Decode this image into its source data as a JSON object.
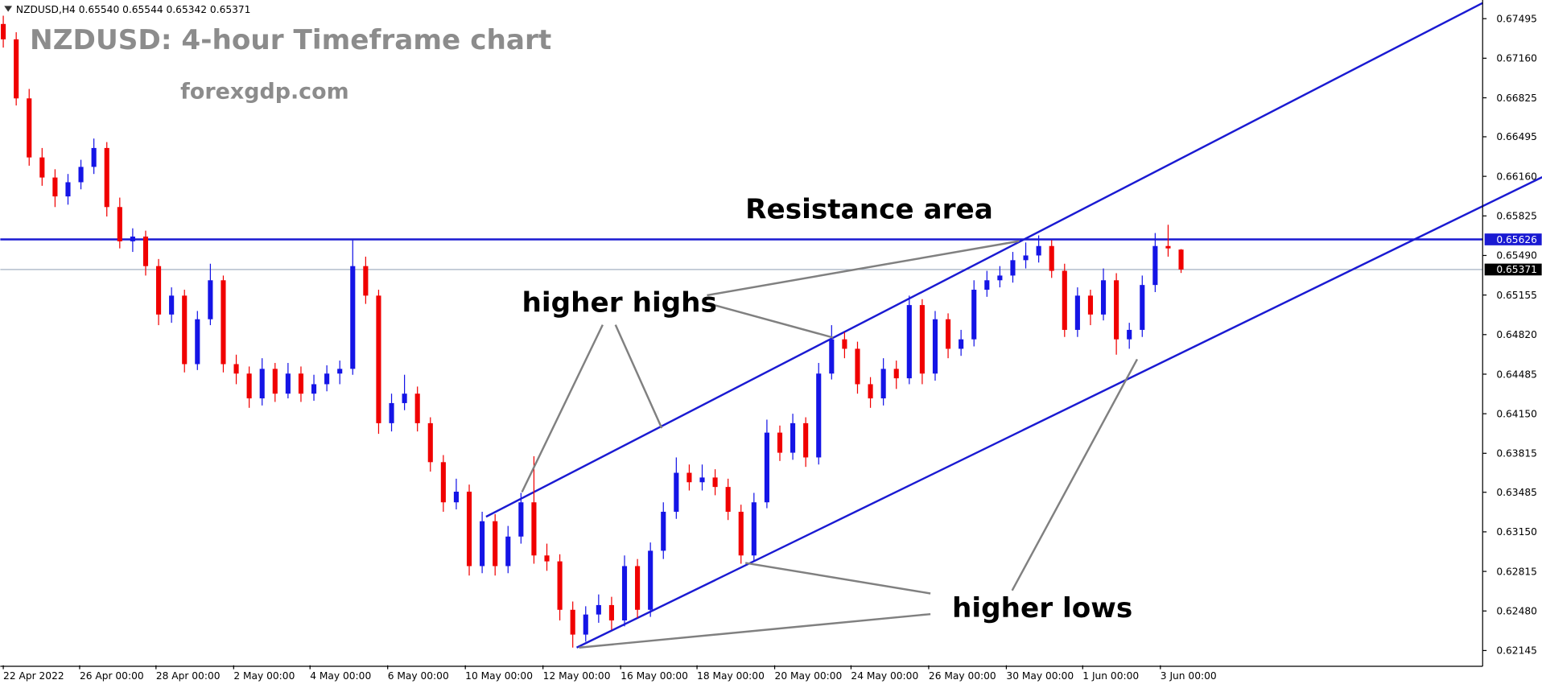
{
  "chart_data": {
    "type": "candlestick",
    "header": "NZDUSD,H4  0.65540 0.65544 0.65342 0.65371",
    "title": "NZDUSD: 4-hour Timeframe chart",
    "subtitle": "forexgdp.com",
    "annotations": [
      "Resistance area",
      "higher highs",
      "higher lows"
    ],
    "up_color": "#1414e6",
    "down_color": "#f00000",
    "open": [
      0.6745,
      0.6732,
      0.6682,
      0.6632,
      0.6615,
      0.6599,
      0.6611,
      0.6624,
      0.664,
      0.659,
      0.6561,
      0.6565,
      0.654,
      0.6499,
      0.6515,
      0.6457,
      0.6495,
      0.6528,
      0.6457,
      0.6449,
      0.6428,
      0.6453,
      0.6432,
      0.6449,
      0.6432,
      0.644,
      0.6449,
      0.6453,
      0.654,
      0.6515,
      0.6407,
      0.6424,
      0.6432,
      0.6407,
      0.6374,
      0.634,
      0.6349,
      0.6286,
      0.6324,
      0.6286,
      0.6311,
      0.634,
      0.6295,
      0.629,
      0.6249,
      0.6228,
      0.6245,
      0.6253,
      0.624,
      0.6286,
      0.6249,
      0.6299,
      0.6332,
      0.6365,
      0.6357,
      0.6361,
      0.6353,
      0.6332,
      0.6295,
      0.634,
      0.6399,
      0.6382,
      0.6407,
      0.6378,
      0.6449,
      0.6478,
      0.647,
      0.644,
      0.6428,
      0.6453,
      0.6445,
      0.6507,
      0.6449,
      0.6495,
      0.647,
      0.6478,
      0.652,
      0.6528,
      0.6532,
      0.6545,
      0.6549,
      0.6557,
      0.6536,
      0.6486,
      0.6515,
      0.6499,
      0.6528,
      0.6478,
      0.6486,
      0.6524,
      0.6557,
      0.6554
    ],
    "high": [
      0.6752,
      0.6738,
      0.669,
      0.664,
      0.6622,
      0.6618,
      0.663,
      0.6648,
      0.6645,
      0.6598,
      0.6572,
      0.657,
      0.6546,
      0.6522,
      0.652,
      0.6502,
      0.6542,
      0.6532,
      0.6465,
      0.6455,
      0.6462,
      0.6458,
      0.6458,
      0.6455,
      0.6448,
      0.6456,
      0.646,
      0.6562,
      0.6548,
      0.652,
      0.6432,
      0.6448,
      0.6438,
      0.6412,
      0.638,
      0.636,
      0.6355,
      0.6332,
      0.633,
      0.632,
      0.6348,
      0.6379,
      0.6305,
      0.6296,
      0.6256,
      0.6252,
      0.6262,
      0.626,
      0.6295,
      0.6292,
      0.6306,
      0.634,
      0.6378,
      0.6372,
      0.6372,
      0.6368,
      0.636,
      0.6338,
      0.6348,
      0.641,
      0.6405,
      0.6415,
      0.6412,
      0.6458,
      0.649,
      0.6484,
      0.6476,
      0.6446,
      0.6462,
      0.646,
      0.6515,
      0.6512,
      0.6502,
      0.65,
      0.6486,
      0.6528,
      0.6536,
      0.654,
      0.6552,
      0.656,
      0.6566,
      0.6562,
      0.6542,
      0.6522,
      0.652,
      0.6538,
      0.6534,
      0.6492,
      0.6532,
      0.6568,
      0.6575,
      0.65544
    ],
    "low": [
      0.6725,
      0.6676,
      0.6625,
      0.6608,
      0.659,
      0.6592,
      0.6605,
      0.6618,
      0.6582,
      0.6555,
      0.6552,
      0.6532,
      0.649,
      0.6492,
      0.645,
      0.6452,
      0.649,
      0.645,
      0.644,
      0.642,
      0.6422,
      0.6425,
      0.6428,
      0.6425,
      0.6426,
      0.6434,
      0.644,
      0.6448,
      0.6508,
      0.6398,
      0.64,
      0.6418,
      0.64,
      0.6366,
      0.6332,
      0.6334,
      0.6278,
      0.628,
      0.6278,
      0.628,
      0.6305,
      0.6288,
      0.6282,
      0.624,
      0.6217,
      0.6222,
      0.6238,
      0.6232,
      0.6235,
      0.6242,
      0.6243,
      0.6292,
      0.6326,
      0.635,
      0.635,
      0.6346,
      0.6325,
      0.6288,
      0.629,
      0.6335,
      0.6375,
      0.6376,
      0.637,
      0.6372,
      0.6444,
      0.6462,
      0.6432,
      0.642,
      0.6422,
      0.6436,
      0.644,
      0.644,
      0.6443,
      0.6462,
      0.6464,
      0.6472,
      0.6514,
      0.6522,
      0.6526,
      0.6538,
      0.6543,
      0.653,
      0.648,
      0.648,
      0.649,
      0.6494,
      0.6465,
      0.647,
      0.648,
      0.6518,
      0.6548,
      0.65342
    ],
    "close": [
      0.6732,
      0.6682,
      0.6632,
      0.6615,
      0.6599,
      0.6611,
      0.6624,
      0.664,
      0.659,
      0.6561,
      0.6565,
      0.654,
      0.6499,
      0.6515,
      0.6457,
      0.6495,
      0.6528,
      0.6457,
      0.6449,
      0.6428,
      0.6453,
      0.6432,
      0.6449,
      0.6432,
      0.644,
      0.6449,
      0.6453,
      0.654,
      0.6515,
      0.6407,
      0.6424,
      0.6432,
      0.6407,
      0.6374,
      0.634,
      0.6349,
      0.6286,
      0.6324,
      0.6286,
      0.6311,
      0.634,
      0.6295,
      0.629,
      0.6249,
      0.6228,
      0.6245,
      0.6253,
      0.624,
      0.6286,
      0.6249,
      0.6299,
      0.6332,
      0.6365,
      0.6357,
      0.6361,
      0.6353,
      0.6332,
      0.6295,
      0.634,
      0.6399,
      0.6382,
      0.6407,
      0.6378,
      0.6449,
      0.6478,
      0.647,
      0.644,
      0.6428,
      0.6453,
      0.6445,
      0.6507,
      0.6449,
      0.6495,
      0.647,
      0.6478,
      0.652,
      0.6528,
      0.6532,
      0.6545,
      0.6549,
      0.6557,
      0.6536,
      0.6486,
      0.6515,
      0.6499,
      0.6528,
      0.6478,
      0.6486,
      0.6524,
      0.6557,
      0.6555,
      0.65371
    ],
    "xlim": [
      -0.23,
      114.3
    ],
    "ylim": [
      0.6202,
      0.67653
    ],
    "yticks": [
      0.67495,
      {
        "value": 0.6716,
        "label": "0.67160"
      },
      0.66825,
      0.66495,
      {
        "value": 0.6616,
        "label": "0.66160"
      },
      0.65825,
      {
        "value": 0.6549,
        "label": "0.65490"
      },
      0.65155,
      {
        "value": 0.6482,
        "label": "0.64820"
      },
      0.64485,
      {
        "value": 0.6415,
        "label": "0.64150"
      },
      0.63815,
      0.63485,
      {
        "value": 0.6315,
        "label": "0.63150"
      },
      0.62815,
      {
        "value": 0.6248,
        "label": "0.62480"
      },
      0.62145
    ],
    "xticks": [
      {
        "value": 0,
        "label": "22 Apr 2022"
      },
      {
        "value": 5.9,
        "label": "26 Apr 00:00"
      },
      {
        "value": 11.8,
        "label": "28 Apr 00:00"
      },
      {
        "value": 17.8,
        "label": "2 May 00:00"
      },
      {
        "value": 23.7,
        "label": "4 May 00:00"
      },
      {
        "value": 29.7,
        "label": "6 May 00:00"
      },
      {
        "value": 35.7,
        "label": "10 May 00:00"
      },
      {
        "value": 41.7,
        "label": "12 May 00:00"
      },
      {
        "value": 47.7,
        "label": "16 May 00:00"
      },
      {
        "value": 53.6,
        "label": "18 May 00:00"
      },
      {
        "value": 59.6,
        "label": "20 May 00:00"
      },
      {
        "value": 65.5,
        "label": "24 May 00:00"
      },
      {
        "value": 71.5,
        "label": "26 May 00:00"
      },
      {
        "value": 77.5,
        "label": "30 May 00:00"
      },
      {
        "value": 83.4,
        "label": "1 Jun 00:00"
      },
      {
        "value": 89.4,
        "label": "3 Jun 00:00"
      }
    ],
    "hlines": [
      {
        "value": 0.65626,
        "color": "#1a1ad2"
      },
      {
        "value": 0.65371,
        "color": "#9aa8ba"
      }
    ],
    "trendlines": [
      {
        "start": [
          37.3,
          0.63278
        ],
        "end": [
          114.3,
          0.67628
        ],
        "color": "#1a1ad2"
      },
      {
        "start": [
          44.3,
          0.6217
        ],
        "end": [
          118.9,
          0.66153
        ],
        "color": "#1a1ad2"
      }
    ]
  }
}
